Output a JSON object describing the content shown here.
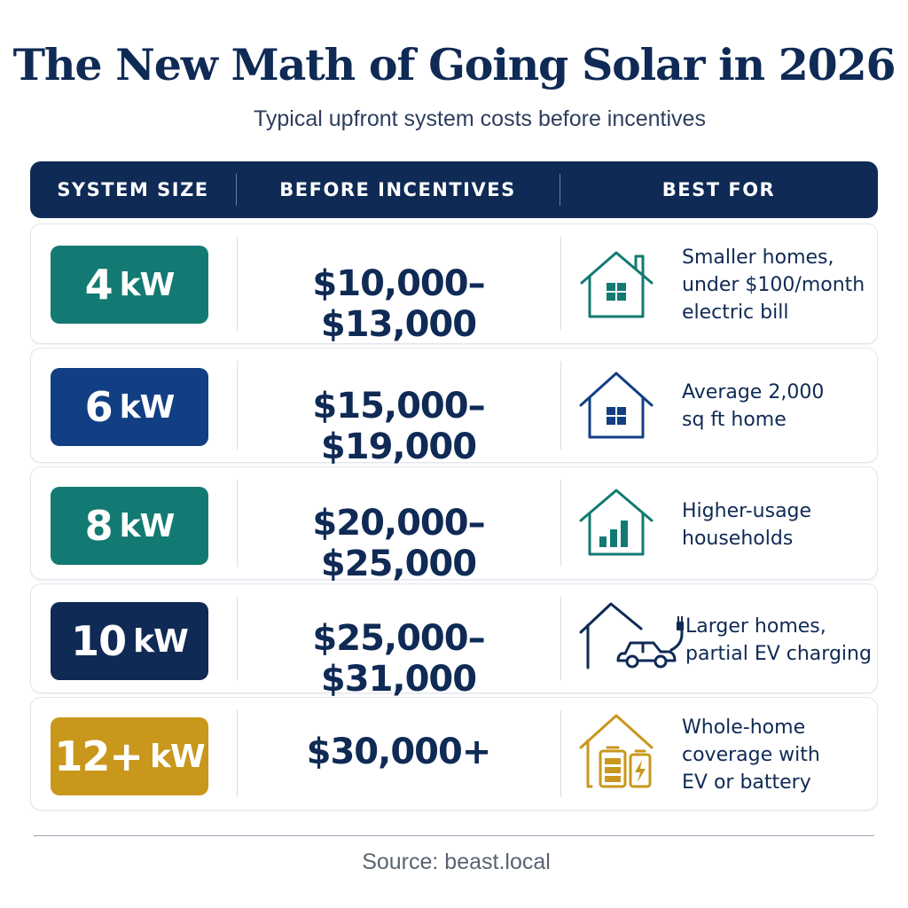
{
  "title": "The New Math of Going Solar in 2026",
  "subtitle": "Typical upfront system costs before incentives",
  "headers": {
    "system_size": "SYSTEM SIZE",
    "before_incentives": "BEFORE INCENTIVES",
    "best_for": "BEST FOR"
  },
  "rows": [
    {
      "size": "4",
      "unit": "kW",
      "price": "$10,000–$13,000",
      "best_for": "Smaller homes,\nunder $100/month\nelectric bill",
      "badge_color": "#127a72",
      "icon": "house-icon"
    },
    {
      "size": "6",
      "unit": "kW",
      "price": "$15,000–$19,000",
      "best_for": "Average 2,000\nsq ft home",
      "badge_color": "#123f84",
      "icon": "house-icon"
    },
    {
      "size": "8",
      "unit": "kW",
      "price": "$20,000–$25,000",
      "best_for": "Higher-usage\nhouseholds",
      "badge_color": "#127a72",
      "icon": "house-bar-chart-icon"
    },
    {
      "size": "10",
      "unit": "kW",
      "price": "$25,000–$31,000",
      "best_for": "Larger homes,\npartial EV charging",
      "badge_color": "#0f2a55",
      "icon": "house-ev-car-icon"
    },
    {
      "size": "12+",
      "unit": "kW",
      "price": "$30,000+",
      "best_for": "Whole-home\ncoverage with\nEV or battery",
      "badge_color": "#c9971c",
      "icon": "house-battery-icon"
    }
  ],
  "colors": {
    "navy": "#0f2a55",
    "teal": "#127a72",
    "blue": "#123f84",
    "gold": "#c9971c"
  },
  "source": "Source: beast.local"
}
